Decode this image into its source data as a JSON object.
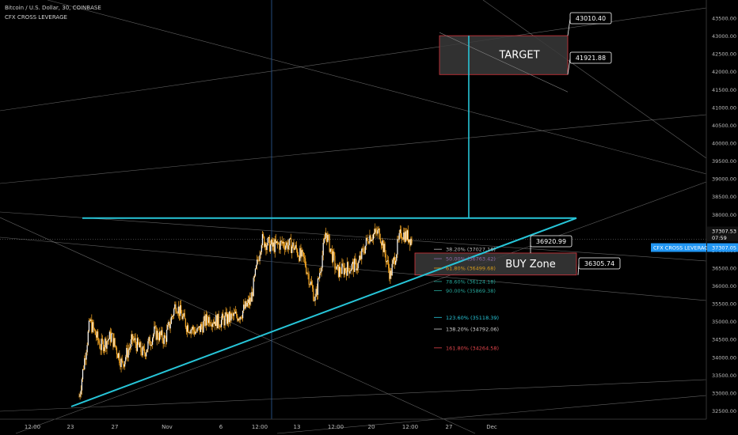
{
  "header": {
    "symbol_line": "Bitcoin / U.S. Dollar, 30, COINBASE",
    "indicator_line": "CFX CROSS LEVERAGE"
  },
  "colors": {
    "candle": "#f5a623",
    "trend": "#27c5d8",
    "zone_border": "#d9343c",
    "zone_fill": "#3a3a3a",
    "grid_line": "#8a8a8a",
    "badge": "#2196f3"
  },
  "chart_data": {
    "type": "candlestick",
    "title": "",
    "ylim": [
      32400,
      43700
    ],
    "y_ticks": [
      "43500.00",
      "43000.00",
      "42500.00",
      "42000.00",
      "41500.00",
      "41000.00",
      "40500.00",
      "40000.00",
      "39500.00",
      "39000.00",
      "38500.00",
      "38000.00",
      "37500.00",
      "37000.00",
      "36500.00",
      "36000.00",
      "35500.00",
      "35000.00",
      "34500.00",
      "34000.00",
      "33500.00",
      "33000.00",
      "32500.00"
    ],
    "x_ticks": [
      "12:00",
      "23",
      "27",
      "Nov",
      "6",
      "12:00",
      "13",
      "12:00",
      "20",
      "12:00",
      "27",
      "Dec"
    ],
    "price_path": [
      {
        "t": "Oct 23",
        "p": 32900
      },
      {
        "t": "Oct 24",
        "p": 35000
      },
      {
        "t": "Oct 25",
        "p": 34300
      },
      {
        "t": "Oct 26",
        "p": 34600
      },
      {
        "t": "Oct 27",
        "p": 33800
      },
      {
        "t": "Oct 28",
        "p": 34500
      },
      {
        "t": "Oct 29",
        "p": 34100
      },
      {
        "t": "Oct 30",
        "p": 34700
      },
      {
        "t": "Oct 31",
        "p": 34500
      },
      {
        "t": "Nov 1",
        "p": 35500
      },
      {
        "t": "Nov 2",
        "p": 34900
      },
      {
        "t": "Nov 3",
        "p": 34700
      },
      {
        "t": "Nov 4",
        "p": 35100
      },
      {
        "t": "Nov 5",
        "p": 35000
      },
      {
        "t": "Nov 6",
        "p": 35100
      },
      {
        "t": "Nov 7",
        "p": 35200
      },
      {
        "t": "Nov 8",
        "p": 35600
      },
      {
        "t": "Nov 9",
        "p": 37300
      },
      {
        "t": "Nov 10",
        "p": 37100
      },
      {
        "t": "Nov 11",
        "p": 37200
      },
      {
        "t": "Nov 12",
        "p": 37100
      },
      {
        "t": "Nov 13",
        "p": 36700
      },
      {
        "t": "Nov 14",
        "p": 35600
      },
      {
        "t": "Nov 15",
        "p": 37500
      },
      {
        "t": "Nov 16",
        "p": 36400
      },
      {
        "t": "Nov 17",
        "p": 36500
      },
      {
        "t": "Nov 18",
        "p": 36600
      },
      {
        "t": "Nov 19",
        "p": 37400
      },
      {
        "t": "Nov 20",
        "p": 37500
      },
      {
        "t": "Nov 21",
        "p": 36300
      },
      {
        "t": "Nov 22",
        "p": 37500
      },
      {
        "t": "Nov 23",
        "p": 37300
      }
    ],
    "target_zone": {
      "label": "TARGET",
      "top": 43010.4,
      "bottom": 41921.88
    },
    "buy_zone": {
      "label": "BUY Zone",
      "top": 36920.99,
      "bottom": 36305.74
    },
    "resistance": 37900,
    "callouts": [
      "43010.40",
      "41921.88",
      "36920.99",
      "36305.74"
    ],
    "fib_levels": [
      {
        "label": "38.20% (37027.16)",
        "value": 37027.16,
        "color": "#bdbdbd"
      },
      {
        "label": "50.00% (36763.42)",
        "value": 36763.42,
        "color": "#8e6aa8"
      },
      {
        "label": "61.80% (36499.68)",
        "value": 36499.68,
        "color": "#d49b1c"
      },
      {
        "label": "78.60% (36124.18)",
        "value": 36124.18,
        "color": "#26a69a"
      },
      {
        "label": "90.00% (35869.38)",
        "value": 35869.38,
        "color": "#26a69a"
      },
      {
        "label": "123.60% (35118.39)",
        "value": 35118.39,
        "color": "#27c5d8"
      },
      {
        "label": "138.20% (34792.06)",
        "value": 34792.06,
        "color": "#cfcfcf"
      },
      {
        "label": "161.80% (34264.58)",
        "value": 34264.58,
        "color": "#e0454b"
      }
    ],
    "last_price": {
      "value": "37307.53",
      "countdown": "07:59"
    },
    "indicator_badge": {
      "label": "CFX CROSS LEVERAGE",
      "value": "37307.05"
    }
  }
}
